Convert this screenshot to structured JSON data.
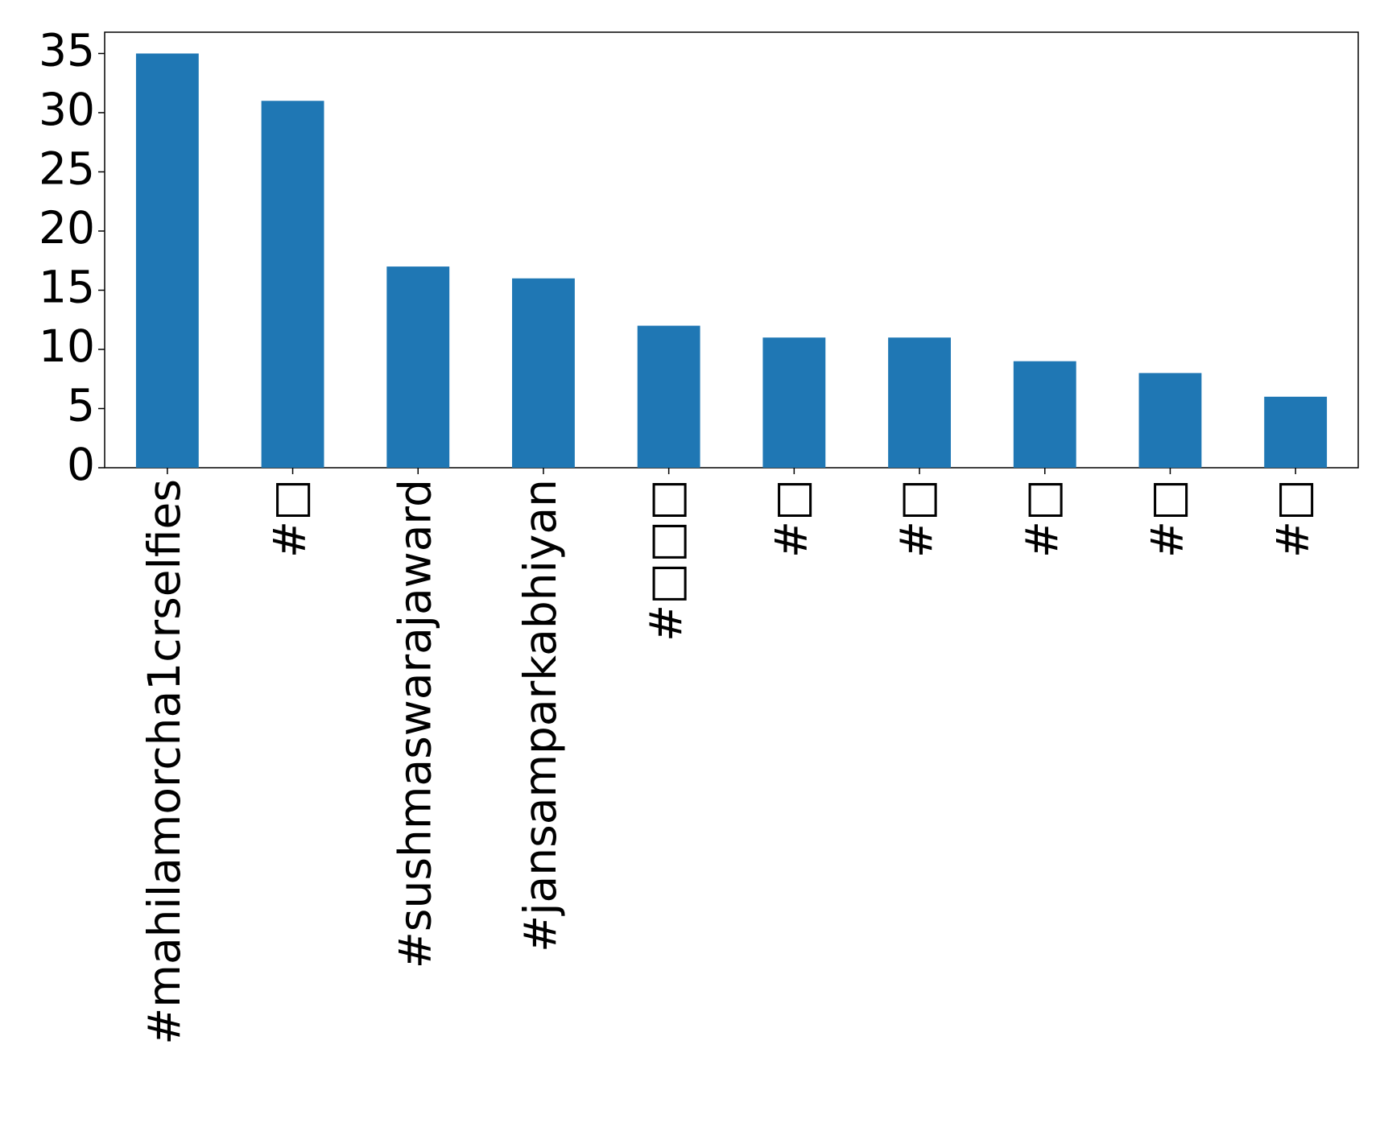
{
  "chart_data": {
    "type": "bar",
    "categories": [
      "#mahilamorcha1crselfies",
      "#□",
      "#sushmaswarajaward",
      "#jansamparkabhiyan",
      "#□□□",
      "#□",
      "#□",
      "#□",
      "#□",
      "#□"
    ],
    "values": [
      35,
      31,
      17,
      16,
      12,
      11,
      11,
      9,
      8,
      6
    ],
    "color": "#1f77b4",
    "ylim": [
      0,
      36.8
    ],
    "yticks": [
      0,
      5,
      10,
      15,
      20,
      25,
      30,
      35
    ],
    "grid": false
  }
}
